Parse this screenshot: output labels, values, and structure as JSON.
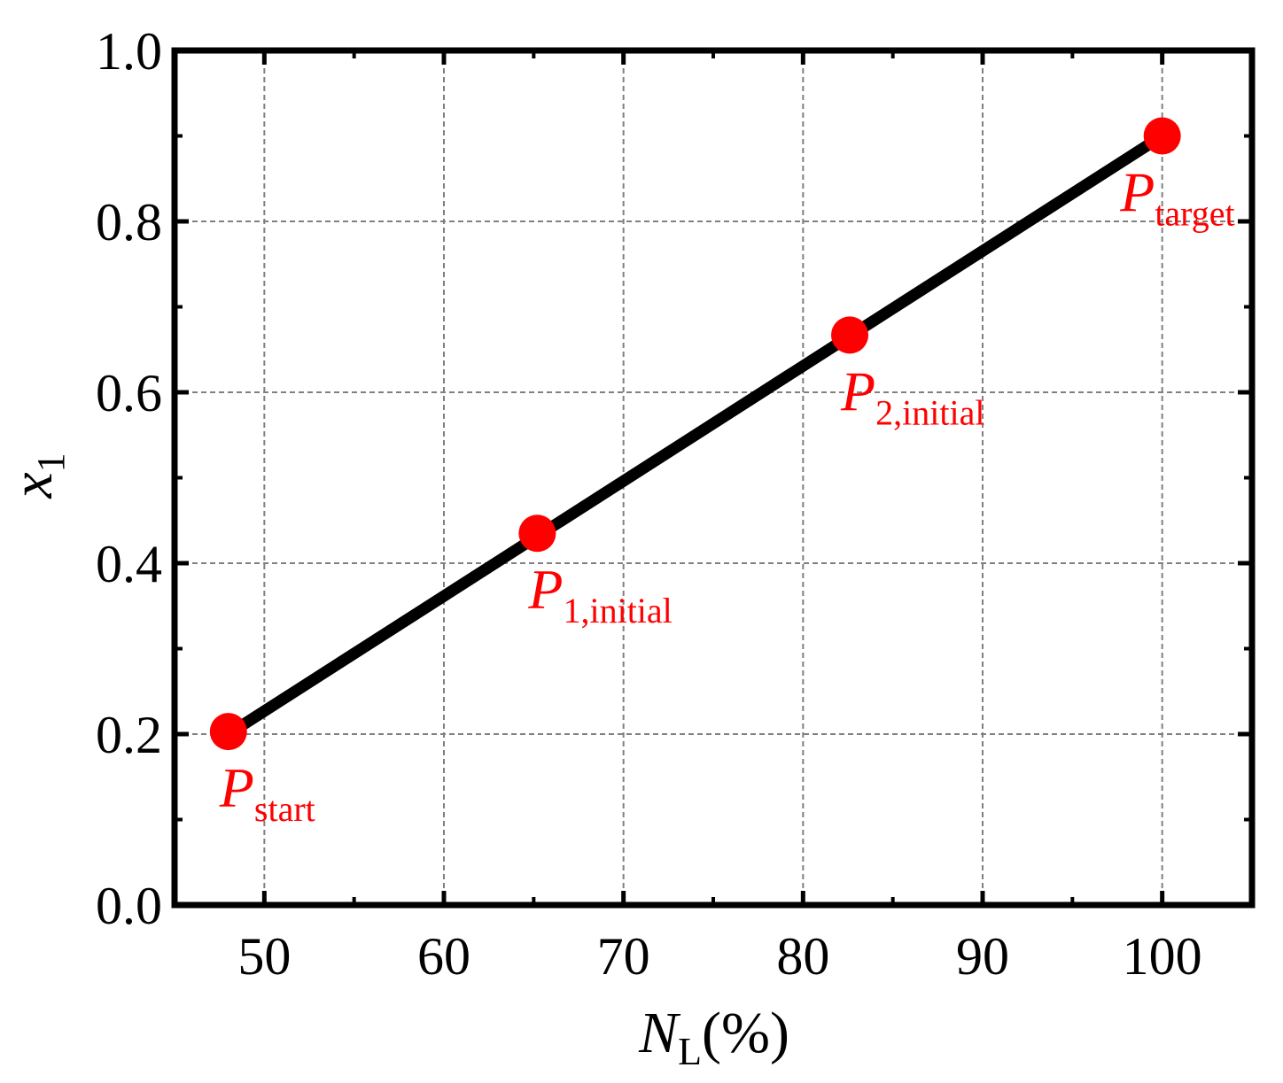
{
  "chart_data": {
    "type": "line",
    "xlabel": {
      "main": "N",
      "sub": "L",
      "suffix": "(%)"
    },
    "ylabel": {
      "main": "x",
      "sub": "1"
    },
    "xlim": [
      45,
      105
    ],
    "ylim": [
      0.0,
      1.0
    ],
    "x_ticks": [
      50,
      60,
      70,
      80,
      90,
      100
    ],
    "x_tick_labels": [
      "50",
      "60",
      "70",
      "80",
      "90",
      "100"
    ],
    "y_ticks": [
      0.0,
      0.2,
      0.4,
      0.6,
      0.8,
      1.0
    ],
    "y_tick_labels": [
      "0.0",
      "0.2",
      "0.4",
      "0.6",
      "0.8",
      "1.0"
    ],
    "x_minor_ticks": [
      55,
      65,
      75,
      85,
      95,
      105
    ],
    "y_minor_ticks": [
      0.1,
      0.3,
      0.5,
      0.7,
      0.9
    ],
    "grid": true,
    "line": {
      "x": [
        48,
        100
      ],
      "y": [
        0.2,
        0.9
      ],
      "color": "#000000"
    },
    "points": [
      {
        "x": 48,
        "y": 0.203,
        "label_main": "P",
        "label_sub": "start"
      },
      {
        "x": 65.2,
        "y": 0.435,
        "label_main": "P",
        "label_sub": "1,initial"
      },
      {
        "x": 82.6,
        "y": 0.667,
        "label_main": "P",
        "label_sub": "2,initial"
      },
      {
        "x": 100,
        "y": 0.9,
        "label_main": "P",
        "label_sub": "target"
      }
    ],
    "point_color": "#ff0000"
  }
}
